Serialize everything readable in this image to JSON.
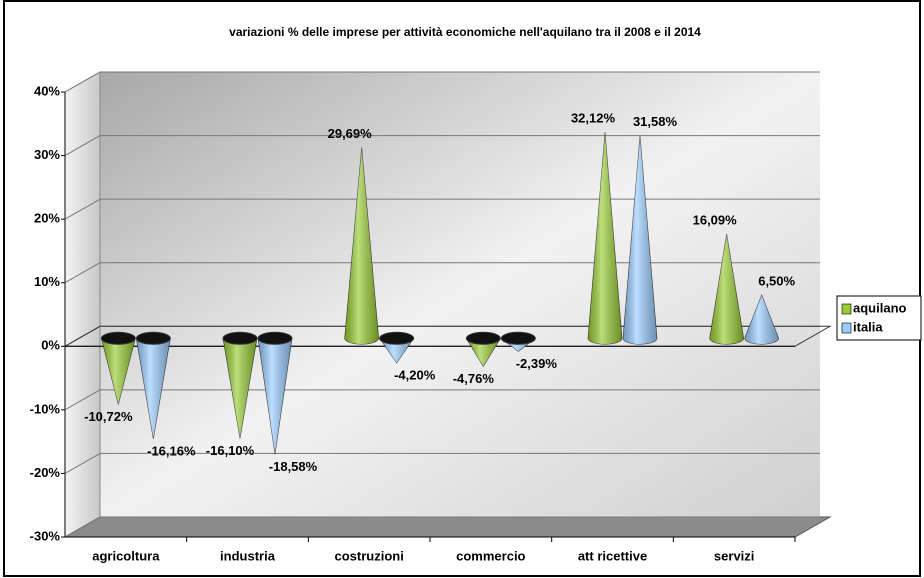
{
  "chart_data": {
    "type": "cone",
    "title": "variazioni % delle imprese per attività economiche nell'aquilano tra il 2008 e il 2014",
    "categories": [
      "agricoltura",
      "industria",
      "costruzioni",
      "commercio",
      "att ricettive",
      "servizi"
    ],
    "series": [
      {
        "name": "aquilano",
        "color": "#99cc33",
        "values": [
          -10.72,
          -16.1,
          29.69,
          -4.76,
          32.12,
          16.09
        ],
        "value_labels": [
          "-10,72%",
          "-16,10%",
          "29,69%",
          "-4,76%",
          "32,12%",
          "16,09%"
        ]
      },
      {
        "name": "italia",
        "color": "#99ccff",
        "values": [
          -16.16,
          -18.58,
          -4.2,
          -2.39,
          31.58,
          6.5
        ],
        "value_labels": [
          "-16,16%",
          "-18,58%",
          "-4,20%",
          "-2,39%",
          "31,58%",
          "6,50%"
        ]
      }
    ],
    "ylim": [
      -30,
      40
    ],
    "yticks": [
      {
        "value": -30,
        "label": "-30%"
      },
      {
        "value": -20,
        "label": "-20%"
      },
      {
        "value": -10,
        "label": "-10%"
      },
      {
        "value": 0,
        "label": "0%"
      },
      {
        "value": 10,
        "label": "10%"
      },
      {
        "value": 20,
        "label": "20%"
      },
      {
        "value": 30,
        "label": "30%"
      },
      {
        "value": 40,
        "label": "40%"
      }
    ],
    "grid": true,
    "legend": "right"
  }
}
